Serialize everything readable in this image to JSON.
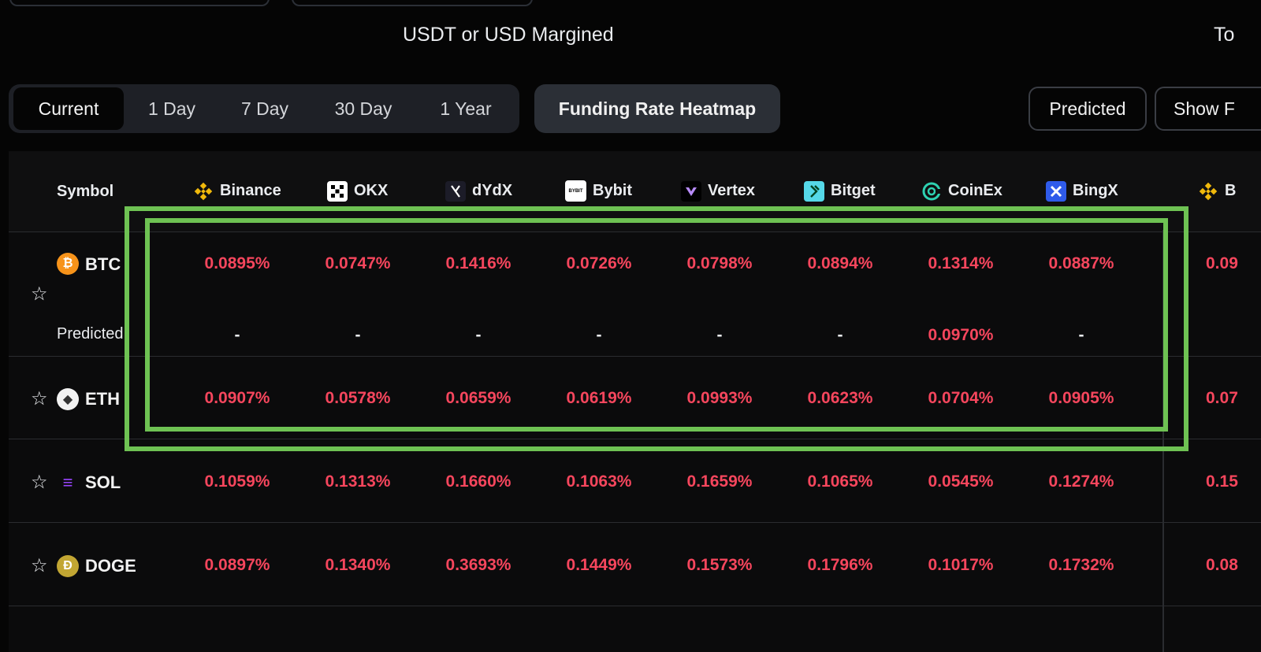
{
  "page": {
    "section_heading": "USDT or USD Margined",
    "section_heading_right": "To"
  },
  "period_tabs": [
    {
      "label": "Current",
      "active": true
    },
    {
      "label": "1 Day",
      "active": false
    },
    {
      "label": "7 Day",
      "active": false
    },
    {
      "label": "30 Day",
      "active": false
    },
    {
      "label": "1 Year",
      "active": false
    }
  ],
  "heatmap_button": "Funding Rate Heatmap",
  "right_buttons": {
    "predicted": "Predicted",
    "show_more": "Show F"
  },
  "table": {
    "symbol_header": "Symbol",
    "exchanges": [
      {
        "name": "Binance",
        "icon": "binance-icon"
      },
      {
        "name": "OKX",
        "icon": "okx-icon"
      },
      {
        "name": "dYdX",
        "icon": "dydx-icon"
      },
      {
        "name": "Bybit",
        "icon": "bybit-icon",
        "icon_text": "BYBIT"
      },
      {
        "name": "Vertex",
        "icon": "vertex-icon"
      },
      {
        "name": "Bitget",
        "icon": "bitget-icon"
      },
      {
        "name": "CoinEx",
        "icon": "coinex-icon"
      },
      {
        "name": "BingX",
        "icon": "bingx-icon"
      },
      {
        "name": "B",
        "icon": "binance-icon"
      }
    ],
    "predicted_label": "Predicted",
    "rows": [
      {
        "symbol": "BTC",
        "icon": "btc-icon",
        "icon_glyph": "₿",
        "rates": [
          "0.0895%",
          "0.0747%",
          "0.1416%",
          "0.0726%",
          "0.0798%",
          "0.0894%",
          "0.1314%",
          "0.0887%",
          "0.09"
        ],
        "predicted": [
          "-",
          "-",
          "-",
          "-",
          "-",
          "-",
          "0.0970%",
          "-"
        ]
      },
      {
        "symbol": "ETH",
        "icon": "eth-icon",
        "icon_glyph": "◆",
        "rates": [
          "0.0907%",
          "0.0578%",
          "0.0659%",
          "0.0619%",
          "0.0993%",
          "0.0623%",
          "0.0704%",
          "0.0905%",
          "0.07"
        ]
      },
      {
        "symbol": "SOL",
        "icon": "sol-icon",
        "icon_glyph": "≡",
        "rates": [
          "0.1059%",
          "0.1313%",
          "0.1660%",
          "0.1063%",
          "0.1659%",
          "0.1065%",
          "0.0545%",
          "0.1274%",
          "0.15"
        ]
      },
      {
        "symbol": "DOGE",
        "icon": "doge-icon",
        "icon_glyph": "Ð",
        "rates": [
          "0.0897%",
          "0.1340%",
          "0.3693%",
          "0.1449%",
          "0.1573%",
          "0.1796%",
          "0.1017%",
          "0.1732%",
          "0.08"
        ]
      }
    ]
  },
  "colors": {
    "negative_rate": "#f6465d",
    "highlight": "#6ec253",
    "background": "#050505",
    "btc": "#f7931a",
    "binance": "#f0b90b"
  }
}
